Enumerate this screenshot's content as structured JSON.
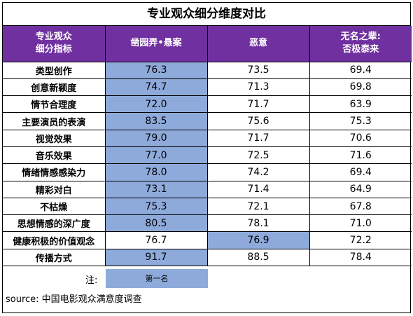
{
  "title": "专业观众细分维度对比",
  "headers": [
    "专业观众\n细分指标",
    "凿园弄•悬案",
    "恶意",
    "无名之辈:\n否极泰来"
  ],
  "highlight_color": "#8eaadb",
  "header_color": "#7030a0",
  "rows": [
    {
      "label": "类型创作",
      "values": [
        "76.3",
        "73.5",
        "69.4"
      ],
      "first": 0
    },
    {
      "label": "创意新颖度",
      "values": [
        "74.7",
        "71.3",
        "69.8"
      ],
      "first": 0
    },
    {
      "label": "情节合理度",
      "values": [
        "72.0",
        "71.7",
        "63.9"
      ],
      "first": 0
    },
    {
      "label": "主要演员的表演",
      "values": [
        "83.5",
        "75.6",
        "75.3"
      ],
      "first": 0
    },
    {
      "label": "视觉效果",
      "values": [
        "79.0",
        "71.7",
        "70.6"
      ],
      "first": 0
    },
    {
      "label": "音乐效果",
      "values": [
        "77.0",
        "72.5",
        "71.6"
      ],
      "first": 0
    },
    {
      "label": "情绪情感感染力",
      "values": [
        "78.0",
        "74.2",
        "69.4"
      ],
      "first": 0
    },
    {
      "label": "精彩对白",
      "values": [
        "73.1",
        "71.4",
        "64.9"
      ],
      "first": 0
    },
    {
      "label": "不枯燥",
      "values": [
        "75.3",
        "72.1",
        "67.8"
      ],
      "first": 0
    },
    {
      "label": "思想情感的深广度",
      "values": [
        "80.5",
        "78.1",
        "71.0"
      ],
      "first": 0
    },
    {
      "label": "健康积极的价值观念",
      "values": [
        "76.7",
        "76.9",
        "72.2"
      ],
      "first": 1
    },
    {
      "label": "传播方式",
      "values": [
        "91.7",
        "88.5",
        "78.4"
      ],
      "first": 0
    }
  ],
  "note": {
    "label": "注:",
    "legend": "第一名"
  },
  "source": "source: 中国电影观众满意度调查"
}
